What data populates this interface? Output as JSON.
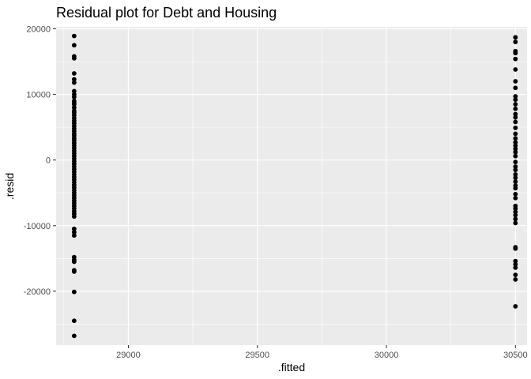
{
  "chart_data": {
    "type": "scatter",
    "title": "Residual plot for Debt and Housing",
    "xlabel": ".fitted",
    "ylabel": ".resid",
    "xlim": [
      28720,
      30545
    ],
    "ylim": [
      -28200,
      20300
    ],
    "x_ticks": [
      29000,
      29500,
      30000,
      30500
    ],
    "y_ticks": [
      -20000,
      -10000,
      0,
      10000,
      20000
    ],
    "x_tick_labels": [
      "29000",
      "29500",
      "30000",
      "30500"
    ],
    "y_tick_labels": [
      "-20000",
      "-10000",
      "0",
      "10000",
      "20000"
    ],
    "grid": true,
    "legend": "none",
    "colors": {
      "panel": "#ebebeb",
      "grid": "#ffffff",
      "point": "#000000",
      "tick": "#333333"
    },
    "series": [
      {
        "x_value": 28790,
        "values": [
          18900,
          17500,
          15800,
          15500,
          13200,
          12300,
          11800,
          10500,
          10000,
          9600,
          9000,
          8700,
          8500,
          8000,
          7500,
          7200,
          6800,
          6400,
          6000,
          5600,
          5200,
          4800,
          4400,
          4000,
          3700,
          3300,
          3000,
          2600,
          2200,
          1800,
          1400,
          1000,
          600,
          200,
          -200,
          -600,
          -1000,
          -1400,
          -1800,
          -2200,
          -2600,
          -3000,
          -3400,
          -3800,
          -4200,
          -4600,
          -5000,
          -5400,
          -5800,
          -6200,
          -6600,
          -7000,
          -7400,
          -7800,
          -8200,
          -8600,
          -10500,
          -11000,
          -11500,
          -14800,
          -15200,
          -15500,
          -16800,
          -17000,
          -20100,
          -24500,
          -26800
        ]
      },
      {
        "x_value": 30500,
        "values": [
          18700,
          18000,
          16600,
          16300,
          15400,
          13800,
          12000,
          11000,
          9700,
          9200,
          8500,
          7800,
          7000,
          6500,
          5800,
          4900,
          4000,
          3300,
          2700,
          2200,
          1700,
          1200,
          600,
          -300,
          -1000,
          -1500,
          -2200,
          -2700,
          -3300,
          -3900,
          -4300,
          -5200,
          -5800,
          -7000,
          -7400,
          -7900,
          -8400,
          -9000,
          -9600,
          -13300,
          -13500,
          -15400,
          -15900,
          -16400,
          -17500,
          -18200,
          -22300
        ]
      }
    ]
  }
}
